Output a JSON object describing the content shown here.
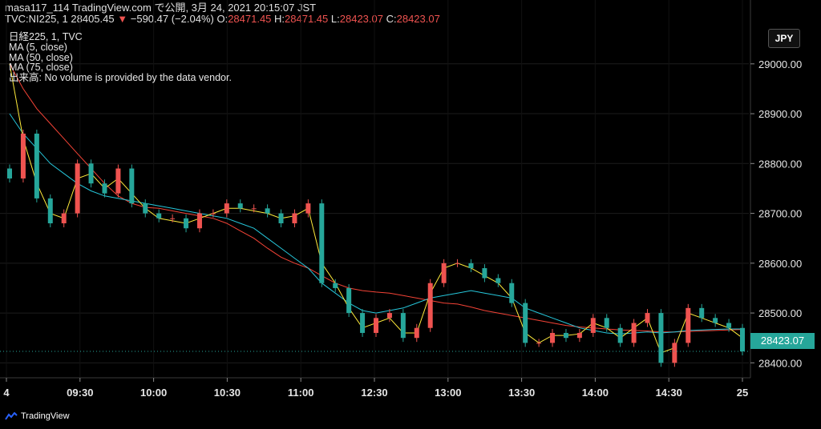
{
  "header": {
    "line1": "masa117_114 TradingView.com で公開, 3月 24, 2021 20:15:07 JST",
    "symbol": "TVC:NI225, 1",
    "price": "28405.45",
    "change": "−590.47 (−2.04%)",
    "open_label": "O:",
    "open": "28471.45",
    "high_label": "H:",
    "high": "28471.45",
    "low_label": "L:",
    "low": "28423.07",
    "close_label": "C:",
    "close": "28423.07"
  },
  "legend": {
    "title": "日経225, 1, TVC",
    "ma5": "MA (5, close)",
    "ma50": "MA (50, close)",
    "ma75": "MA (75, close)",
    "volume_note": "出来高: No volume is provided by the data vendor."
  },
  "currency_button": "JPY",
  "last_price_label": "28423.07",
  "brand": "TradingView",
  "colors": {
    "up": "#ef5350",
    "down": "#26a69a",
    "ma5": "#ffeb3b",
    "ma50": "#26c6da",
    "ma75": "#f44336"
  },
  "chart_data": {
    "type": "line",
    "title": "",
    "x_ticks": [
      "4",
      "09:30",
      "10:00",
      "10:30",
      "11:00",
      "12:30",
      "13:00",
      "13:30",
      "14:00",
      "14:30",
      "25"
    ],
    "y_ticks": [
      "28400.00",
      "28500.00",
      "28600.00",
      "28700.00",
      "28800.00",
      "28900.00",
      "29000.00"
    ],
    "ylim": [
      28370,
      29080
    ],
    "grid": true,
    "series": [
      {
        "name": "price",
        "values": [
          28770,
          28860,
          28730,
          28680,
          28700,
          28800,
          28760,
          28740,
          28790,
          28720,
          28700,
          28690,
          28690,
          28670,
          28700,
          28700,
          28720,
          28710,
          28710,
          28700,
          28680,
          28700,
          28720,
          28560,
          28550,
          28500,
          28460,
          28490,
          28500,
          28450,
          28470,
          28560,
          28600,
          28600,
          28590,
          28570,
          28560,
          28520,
          28440,
          28440,
          28460,
          28450,
          28460,
          28490,
          28470,
          28440,
          28480,
          28500,
          28400,
          28440,
          28510,
          28490,
          28480,
          28470,
          28423
        ]
      },
      {
        "name": "MA (5, close)",
        "values": [
          29000,
          28850,
          28760,
          28700,
          28690,
          28770,
          28780,
          28750,
          28770,
          28740,
          28710,
          28690,
          28685,
          28680,
          28690,
          28700,
          28710,
          28710,
          28705,
          28700,
          28690,
          28695,
          28710,
          28600,
          28560,
          28510,
          28470,
          28480,
          28490,
          28460,
          28460,
          28540,
          28590,
          28600,
          28590,
          28575,
          28560,
          28530,
          28460,
          28440,
          28455,
          28455,
          28458,
          28480,
          28470,
          28450,
          28470,
          28490,
          28420,
          28430,
          28500,
          28490,
          28480,
          28470,
          28450
        ]
      },
      {
        "name": "MA (50, close)",
        "values": [
          28900,
          28860,
          28830,
          28800,
          28780,
          28760,
          28745,
          28735,
          28730,
          28725,
          28720,
          28715,
          28710,
          28705,
          28700,
          28695,
          28690,
          28680,
          28670,
          28650,
          28630,
          28610,
          28590,
          28560,
          28540,
          28520,
          28505,
          28500,
          28505,
          28510,
          28520,
          28530,
          28535,
          28540,
          28545,
          28540,
          28535,
          28530,
          28510,
          28500,
          28490,
          28480,
          28470,
          28465,
          28460,
          28458,
          28460,
          28462,
          28460,
          28462,
          28465,
          28466,
          28467,
          28468,
          28468
        ]
      },
      {
        "name": "MA (75, close)",
        "values": [
          29000,
          28950,
          28910,
          28880,
          28850,
          28820,
          28790,
          28760,
          28735,
          28720,
          28712,
          28710,
          28705,
          28700,
          28695,
          28690,
          28680,
          28665,
          28650,
          28630,
          28612,
          28600,
          28590,
          28575,
          28560,
          28550,
          28545,
          28542,
          28540,
          28535,
          28530,
          28525,
          28520,
          28518,
          28512,
          28505,
          28500,
          28495,
          28490,
          28485,
          28480,
          28475,
          28472,
          28470,
          28468,
          28466,
          28465,
          28464,
          28462,
          28462,
          28463,
          28464,
          28465,
          28466,
          28467
        ]
      }
    ]
  }
}
